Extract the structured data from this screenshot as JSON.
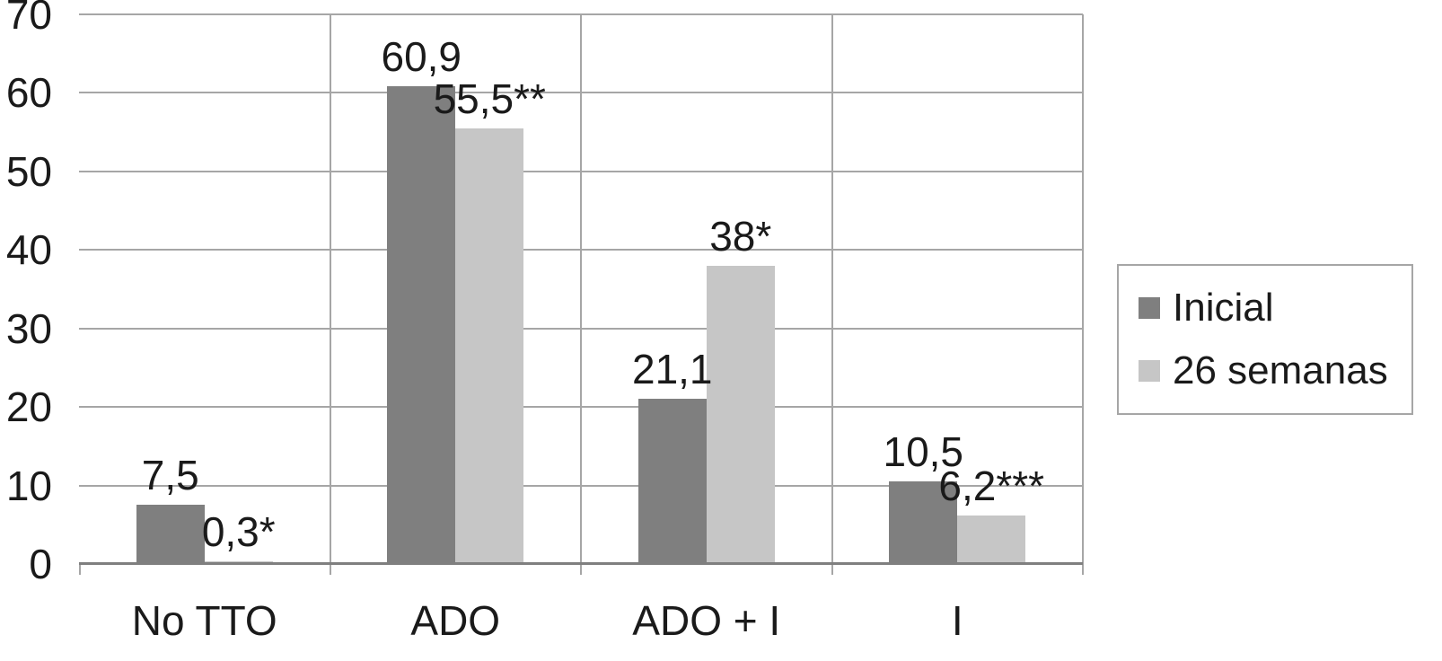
{
  "chart_data": {
    "type": "bar",
    "categories": [
      "No TTO",
      "ADO",
      "ADO + I",
      "I"
    ],
    "series": [
      {
        "name": "Inicial",
        "color": "#7f7f7f",
        "values": [
          7.5,
          60.9,
          21.1,
          10.5
        ],
        "labels": [
          "7,5",
          "60,9",
          "21,1",
          "10,5"
        ]
      },
      {
        "name": "26 semanas",
        "color": "#c6c6c6",
        "values": [
          0.3,
          55.5,
          38.0,
          6.2
        ],
        "labels": [
          "0,3*",
          "55,5**",
          "38*",
          "6,2***"
        ]
      }
    ],
    "title": "",
    "xlabel": "",
    "ylabel": "",
    "ylim": [
      0,
      70
    ],
    "ytick_step": 10,
    "yticks": [
      "0",
      "10",
      "20",
      "30",
      "40",
      "50",
      "60",
      "70"
    ],
    "grid": "horizontal",
    "legend_position": "right"
  },
  "colors": {
    "background": "#ffffff",
    "bar_series_1": "#7f7f7f",
    "bar_series_2": "#c6c6c6",
    "gridline": "#a6a6a6",
    "axis_line": "#7f7f7f",
    "text": "#1a1a1a",
    "legend_border": "#a6a6a6"
  }
}
